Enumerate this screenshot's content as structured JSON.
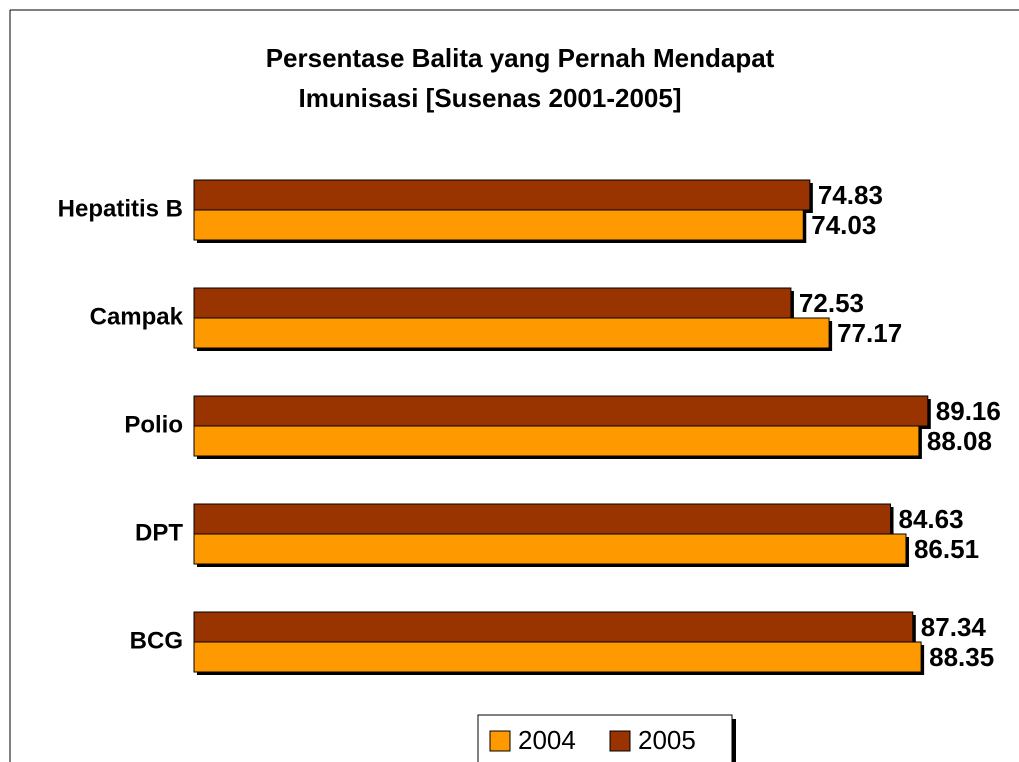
{
  "chart_data": {
    "type": "bar",
    "orientation": "horizontal",
    "title": "Persentase Balita yang Pernah Mendapat Imunisasi [Susenas 2001-2005]",
    "title_lines": [
      "Persentase Balita yang Pernah Mendapat",
      "Imunisasi [Susenas 2001-2005]"
    ],
    "categories": [
      "Hepatitis B",
      "Campak",
      "Polio",
      "DPT",
      "BCG"
    ],
    "series": [
      {
        "name": "2004",
        "color": "#ff9900",
        "values": [
          74.03,
          77.17,
          88.08,
          86.51,
          88.35
        ]
      },
      {
        "name": "2005",
        "color": "#993300",
        "values": [
          74.83,
          72.53,
          89.16,
          84.63,
          87.34
        ]
      }
    ],
    "xlim": [
      0,
      100
    ],
    "legend": "bottom"
  }
}
